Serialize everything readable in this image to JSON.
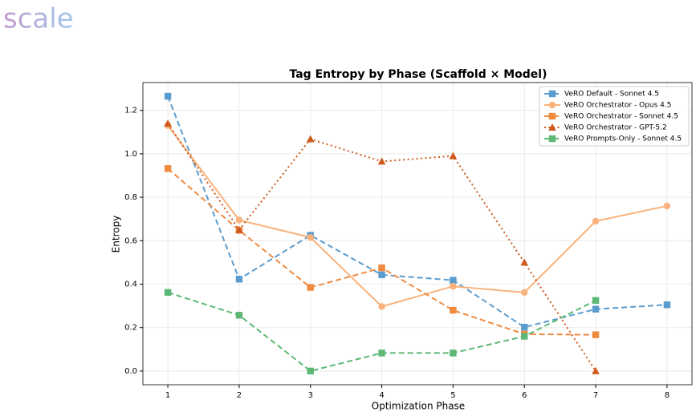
{
  "logo": "scale",
  "chart_data": {
    "type": "line",
    "title": "Tag Entropy by Phase (Scaffold × Model)",
    "x_label": "Optimization Phase",
    "y_label": "Entropy",
    "x": [
      1,
      2,
      3,
      4,
      5,
      6,
      7,
      8
    ],
    "xlim": [
      0.65,
      8.35
    ],
    "xticks": [
      1,
      2,
      3,
      4,
      5,
      6,
      7,
      8
    ],
    "ylim": [
      -0.063,
      1.328
    ],
    "yticks": [
      {
        "value": 0,
        "label": "0.0"
      },
      0.2,
      0.4,
      0.6,
      0.8,
      {
        "value": 1,
        "label": "1.0"
      },
      1.2
    ],
    "grid": true,
    "legend": "upper right",
    "series": [
      {
        "name": "VeRO Default - Sonnet 4.5",
        "color": "#5b9ccf",
        "marker": "square",
        "linestyle": "dashed",
        "values": [
          1.265,
          0.423,
          0.625,
          0.443,
          0.418,
          0.202,
          0.285,
          0.305
        ]
      },
      {
        "name": "VeRO Orchestrator - Opus 4.5",
        "color": "#f9b27b",
        "marker": "circle",
        "linestyle": "solid",
        "values": [
          1.13,
          0.695,
          0.615,
          0.297,
          0.39,
          0.362,
          0.69,
          0.76
        ]
      },
      {
        "name": "VeRO Orchestrator - Sonnet 4.5",
        "color": "#ef8a3f",
        "marker": "square",
        "linestyle": "dashed",
        "values": [
          0.932,
          0.648,
          0.385,
          0.475,
          0.28,
          0.17,
          0.167,
          null
        ]
      },
      {
        "name": "VeRO Orchestrator - GPT-5.2",
        "color": "#cf5a1c",
        "marker": "triangle",
        "linestyle": "dotted",
        "values": [
          1.14,
          0.65,
          1.068,
          0.965,
          0.99,
          0.5,
          0.0,
          null
        ]
      },
      {
        "name": "VeRO Prompts-Only - Sonnet 4.5",
        "color": "#5cb874",
        "marker": "square",
        "linestyle": "dashed",
        "values": [
          0.362,
          0.257,
          0.0,
          0.083,
          0.083,
          0.16,
          0.325,
          null
        ]
      }
    ]
  }
}
